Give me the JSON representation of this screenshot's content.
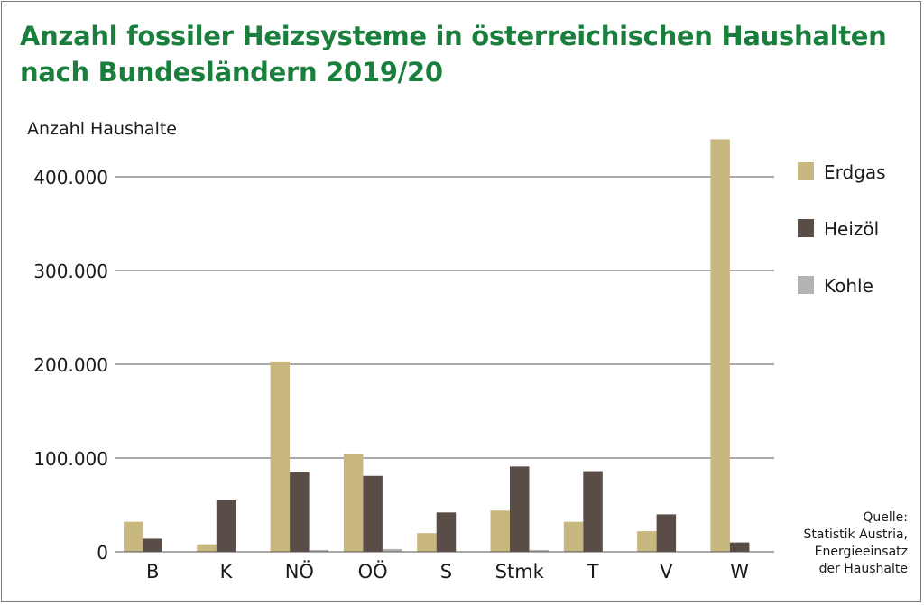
{
  "title_lines": [
    "Anzahl fossiler Heizsysteme in österreichischen Haushalten",
    "nach Bundesländern 2019/20"
  ],
  "source_lines": [
    "Quelle:",
    "Statistik Austria,",
    "Energieeinsatz",
    "der Haushalte"
  ],
  "chart_data": {
    "type": "bar",
    "title": "Anzahl fossiler Heizsysteme in österreichischen Haushalten nach Bundesländern 2019/20",
    "ylabel": "Anzahl Haushalte",
    "xlabel": "",
    "categories": [
      "B",
      "K",
      "NÖ",
      "OÖ",
      "S",
      "Stmk",
      "T",
      "V",
      "W"
    ],
    "ylim": [
      0,
      440000
    ],
    "yticks": [
      0,
      100000,
      200000,
      300000,
      400000
    ],
    "ytick_labels": [
      "0",
      "100.000",
      "200.000",
      "300.000",
      "400.000"
    ],
    "grid": true,
    "legend_position": "right",
    "series": [
      {
        "name": "Erdgas",
        "color": "#c8b77f",
        "values": [
          32000,
          8000,
          203000,
          104000,
          20000,
          44000,
          32000,
          22000,
          440000
        ]
      },
      {
        "name": "Heizöl",
        "color": "#5a4d48",
        "values": [
          14000,
          55000,
          85000,
          81000,
          42000,
          91000,
          86000,
          40000,
          10000
        ]
      },
      {
        "name": "Kohle",
        "color": "#b3b3b3",
        "values": [
          500,
          500,
          2000,
          3000,
          500,
          2000,
          500,
          500,
          500
        ]
      }
    ]
  }
}
